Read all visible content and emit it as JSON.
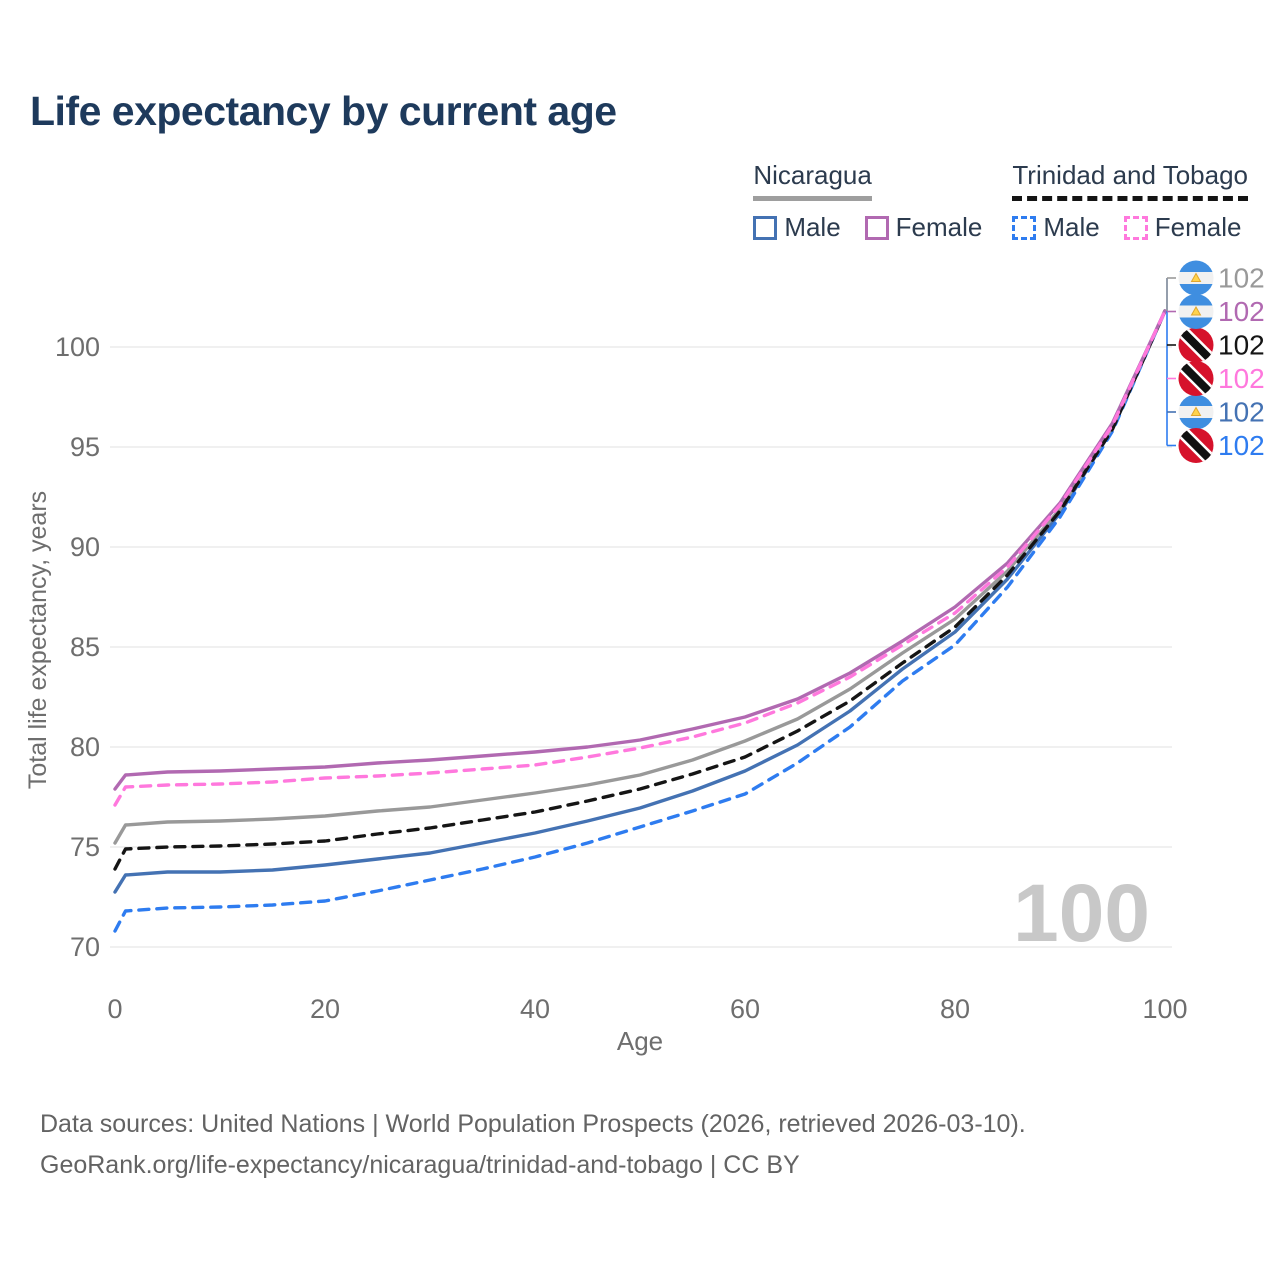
{
  "title": "Life expectancy by current age",
  "legend": {
    "groups": [
      {
        "country": "Nicaragua",
        "line_style": "solid",
        "items": [
          {
            "label": "Male",
            "color": "#4472b3"
          },
          {
            "label": "Female",
            "color": "#b169b1"
          }
        ]
      },
      {
        "country": "Trinidad and Tobago",
        "line_style": "dashed",
        "items": [
          {
            "label": "Male",
            "color": "#2e7cf0"
          },
          {
            "label": "Female",
            "color": "#ff78dd"
          }
        ]
      }
    ]
  },
  "watermark": "100",
  "footer": {
    "line1": "Data sources: United Nations | World Population Prospects (2026, retrieved 2026-03-10).",
    "line2": "GeoRank.org/life-expectancy/nicaragua/trinidad-and-tobago | CC BY"
  },
  "chart_data": {
    "type": "line",
    "title": "Life expectancy by current age",
    "xlabel": "Age",
    "ylabel": "Total life expectancy, years",
    "xlim": [
      0,
      100
    ],
    "ylim": [
      70,
      102
    ],
    "xticks": [
      0,
      20,
      40,
      60,
      80,
      100
    ],
    "yticks": [
      70,
      75,
      80,
      85,
      90,
      95,
      100
    ],
    "grid": true,
    "legend_position": "top-right",
    "x": [
      0,
      1,
      5,
      10,
      15,
      20,
      25,
      30,
      35,
      40,
      45,
      50,
      55,
      60,
      65,
      70,
      75,
      80,
      85,
      90,
      95,
      100
    ],
    "series": [
      {
        "name": "Nicaragua Male",
        "country": "Nicaragua",
        "sex": "male",
        "color": "#4472b3",
        "dashed": false,
        "flag": "nicaragua",
        "label_row": 4,
        "end_label": "102",
        "values": [
          72.75,
          73.6,
          73.75,
          73.75,
          73.85,
          74.1,
          74.4,
          74.7,
          75.2,
          75.7,
          76.3,
          76.95,
          77.8,
          78.8,
          80.1,
          81.8,
          83.9,
          85.75,
          88.4,
          91.7,
          95.9,
          101.8
        ]
      },
      {
        "name": "Trinidad and Tobago Male",
        "country": "Trinidad and Tobago",
        "sex": "male",
        "color": "#2e7cf0",
        "dashed": true,
        "flag": "trinidad",
        "label_row": 5,
        "end_label": "102",
        "values": [
          70.8,
          71.8,
          71.95,
          72.0,
          72.1,
          72.3,
          72.8,
          73.35,
          73.9,
          74.5,
          75.2,
          76.0,
          76.8,
          77.65,
          79.2,
          81.0,
          83.3,
          85.1,
          88.0,
          91.5,
          95.8,
          101.8
        ]
      },
      {
        "name": "Nicaragua",
        "country": "Nicaragua",
        "sex": "both",
        "color": "#999999",
        "dashed": false,
        "flag": "nicaragua",
        "label_row": 0,
        "end_label": "102",
        "values": [
          75.2,
          76.1,
          76.25,
          76.3,
          76.4,
          76.55,
          76.8,
          77.0,
          77.35,
          77.7,
          78.1,
          78.6,
          79.35,
          80.3,
          81.4,
          82.9,
          84.7,
          86.4,
          88.8,
          91.9,
          96.0,
          101.8
        ]
      },
      {
        "name": "Trinidad and Tobago",
        "country": "Trinidad and Tobago",
        "sex": "both",
        "color": "#151515",
        "dashed": true,
        "flag": "trinidad",
        "label_row": 2,
        "end_label": "102",
        "values": [
          73.9,
          74.9,
          75.0,
          75.05,
          75.15,
          75.3,
          75.65,
          75.95,
          76.35,
          76.75,
          77.3,
          77.9,
          78.65,
          79.5,
          80.8,
          82.3,
          84.2,
          86.0,
          88.6,
          91.8,
          95.9,
          101.8
        ]
      },
      {
        "name": "Nicaragua Female",
        "country": "Nicaragua",
        "sex": "female",
        "color": "#b169b1",
        "dashed": false,
        "flag": "nicaragua",
        "label_row": 1,
        "end_label": "102",
        "values": [
          77.9,
          78.6,
          78.75,
          78.8,
          78.9,
          79.0,
          79.2,
          79.35,
          79.55,
          79.75,
          80.0,
          80.35,
          80.9,
          81.5,
          82.4,
          83.7,
          85.3,
          87.0,
          89.2,
          92.2,
          96.2,
          101.8
        ]
      },
      {
        "name": "Trinidad and Tobago Female",
        "country": "Trinidad and Tobago",
        "sex": "female",
        "color": "#ff78dd",
        "dashed": true,
        "flag": "trinidad",
        "label_row": 3,
        "end_label": "102",
        "values": [
          77.1,
          78.0,
          78.1,
          78.15,
          78.25,
          78.45,
          78.55,
          78.7,
          78.9,
          79.1,
          79.5,
          79.95,
          80.5,
          81.2,
          82.2,
          83.5,
          85.1,
          86.7,
          89.0,
          92.1,
          96.1,
          101.8
        ]
      }
    ]
  }
}
